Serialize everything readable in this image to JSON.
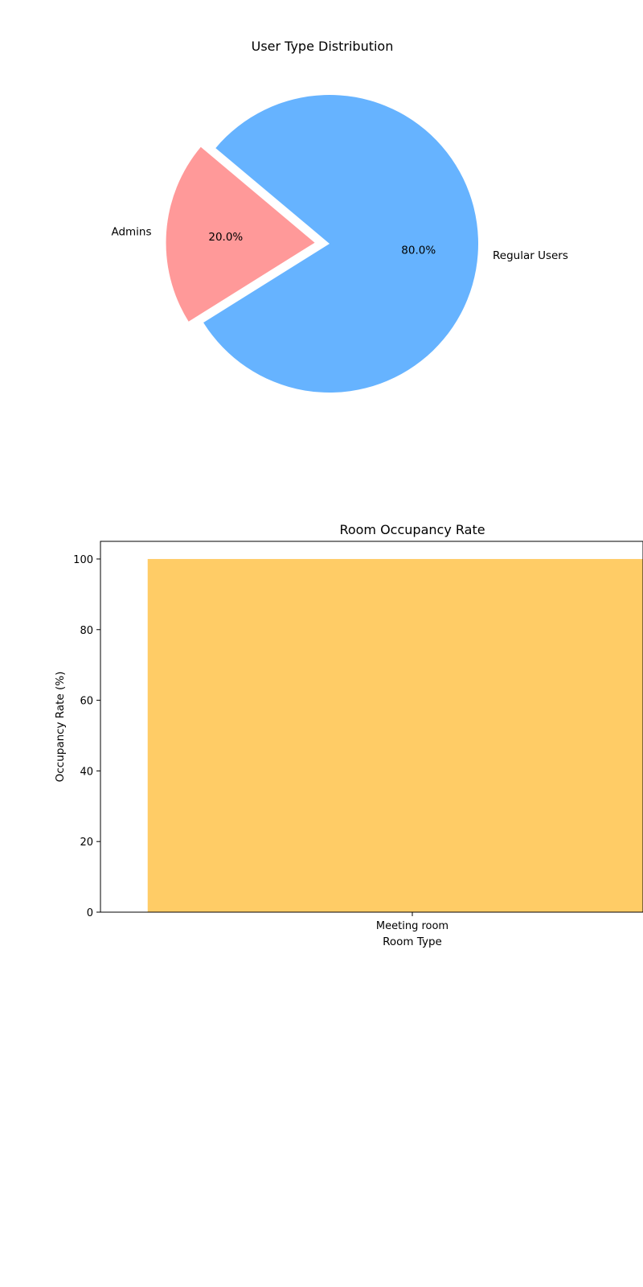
{
  "chart_data": [
    {
      "type": "pie",
      "title": "User Type Distribution",
      "slices": [
        {
          "label": "Admins",
          "value": 20.0,
          "percent_label": "20.0%",
          "color": "#ff9999",
          "exploded": true
        },
        {
          "label": "Regular Users",
          "value": 80.0,
          "percent_label": "80.0%",
          "color": "#66b3ff",
          "exploded": false
        }
      ],
      "start_angle_deg": 140,
      "direction": "counterclockwise"
    },
    {
      "type": "bar",
      "title": "Room Occupancy Rate",
      "categories": [
        "Meeting room"
      ],
      "values": [
        100
      ],
      "bar_color": "#ffcc66",
      "xlabel": "Room Type",
      "ylabel": "Occupancy Rate (%)",
      "ylim": [
        0,
        105
      ],
      "yticks": [
        0,
        20,
        40,
        60,
        80,
        100
      ],
      "grid": false
    }
  ]
}
